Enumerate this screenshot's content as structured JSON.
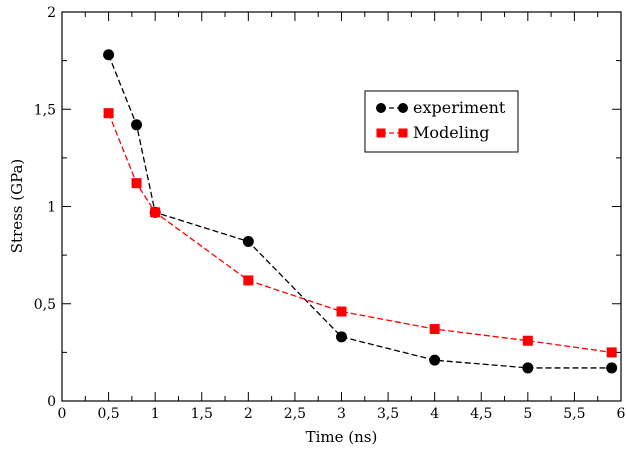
{
  "chart_data": {
    "type": "line",
    "xlabel": "Time (ns)",
    "ylabel": "Stress (GPa)",
    "xlim": [
      0,
      6
    ],
    "ylim": [
      0,
      2
    ],
    "xticks": [
      "0",
      "0,5",
      "1",
      "1,5",
      "2",
      "2,5",
      "3",
      "3,5",
      "4",
      "4,5",
      "5",
      "5,5",
      "6"
    ],
    "yticks": [
      "0",
      "0,5",
      "1",
      "1,5",
      "2"
    ],
    "grid": false,
    "legend_position": "top-right",
    "series": [
      {
        "name": "experiment",
        "color": "#000000",
        "marker": "circle",
        "line_style": "dashed",
        "x": [
          0.5,
          0.8,
          1.0,
          2.0,
          3.0,
          4.0,
          5.0,
          5.9
        ],
        "y": [
          1.78,
          1.42,
          0.97,
          0.82,
          0.33,
          0.21,
          0.17,
          0.17
        ]
      },
      {
        "name": "Modeling",
        "color": "#ff0000",
        "marker": "square",
        "line_style": "dashed",
        "x": [
          0.5,
          0.8,
          1.0,
          2.0,
          3.0,
          4.0,
          5.0,
          5.9
        ],
        "y": [
          1.48,
          1.12,
          0.97,
          0.62,
          0.46,
          0.37,
          0.31,
          0.25
        ]
      }
    ]
  }
}
